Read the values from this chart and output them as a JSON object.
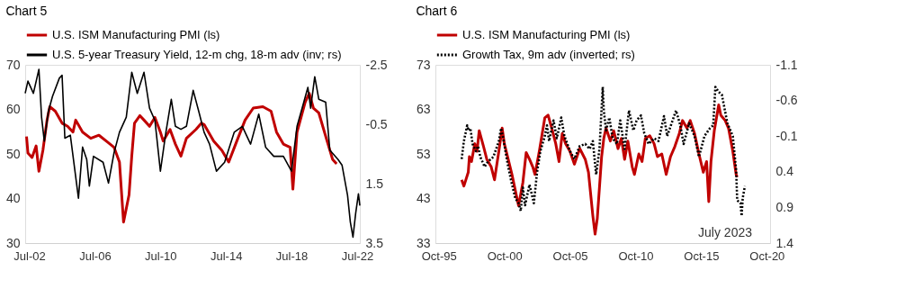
{
  "chart_data": [
    {
      "type": "line",
      "title": "Chart 5",
      "legend": "top",
      "grid": false,
      "marker": "none",
      "xlim": [
        "2002-04",
        "2022-09"
      ],
      "xticks": [
        {
          "value": "2002-07",
          "label": "Jul-02"
        },
        {
          "value": "2006-07",
          "label": "Jul-06"
        },
        {
          "value": "2010-07",
          "label": "Jul-10"
        },
        {
          "value": "2014-07",
          "label": "Jul-14"
        },
        {
          "value": "2018-07",
          "label": "Jul-18"
        },
        {
          "value": "2022-07",
          "label": "Jul-22"
        }
      ],
      "ylim": [
        30,
        70
      ],
      "yticks": [
        30,
        40,
        50,
        60,
        70
      ],
      "y2lim": [
        3.5,
        -2.5
      ],
      "y2ticks": [
        -2.5,
        -0.5,
        1.5,
        3.5
      ],
      "series": [
        {
          "name": "U.S. ISM Manufacturing PMI (ls)",
          "color": "#c00000",
          "axis": "y",
          "line_style": "solid",
          "x": [
            "2002-05",
            "2002-06",
            "2002-09",
            "2002-12",
            "2003-02",
            "2003-05",
            "2003-08",
            "2003-10",
            "2004-02",
            "2004-07",
            "2004-11",
            "2005-03",
            "2005-05",
            "2005-10",
            "2006-04",
            "2006-10",
            "2007-05",
            "2007-09",
            "2008-01",
            "2008-04",
            "2008-08",
            "2008-10",
            "2008-12",
            "2009-04",
            "2009-07",
            "2009-11",
            "2010-03",
            "2010-07",
            "2010-09",
            "2011-02",
            "2011-06",
            "2011-10",
            "2012-02",
            "2012-09",
            "2013-01",
            "2013-03",
            "2013-10",
            "2014-04",
            "2014-09",
            "2015-03",
            "2015-09",
            "2016-03",
            "2016-10",
            "2017-04",
            "2017-08",
            "2018-01",
            "2018-06",
            "2018-08",
            "2018-11",
            "2019-05",
            "2019-08",
            "2019-11",
            "2020-03",
            "2020-09",
            "2021-01",
            "2021-04"
          ],
          "values": [
            53.9,
            50.2,
            49.2,
            51.8,
            46.1,
            50.8,
            57.6,
            60.6,
            59.6,
            56.9,
            56.2,
            54.9,
            57.6,
            54.9,
            53.5,
            54.2,
            52.5,
            51.5,
            48.2,
            34.7,
            40.8,
            49.5,
            56.9,
            58.6,
            57.6,
            56.2,
            58.2,
            54.9,
            52.9,
            55.5,
            52.2,
            49.5,
            53.5,
            55.5,
            56.9,
            56.6,
            52.9,
            50.8,
            48.2,
            52.9,
            57.6,
            60.3,
            60.6,
            59.6,
            54.9,
            52.2,
            51.5,
            42.1,
            54.9,
            61.6,
            63.6,
            60.3,
            59.2,
            52.9,
            48.8,
            47.8
          ]
        },
        {
          "name": "U.S. 5-year Treasury Yield, 12-m chg, 18-m adv (inv; rs)",
          "color": "#000000",
          "axis": "y2",
          "line_style": "solid",
          "x": [
            "2002-04",
            "2002-06",
            "2002-10",
            "2003-02",
            "2003-04",
            "2003-06",
            "2003-09",
            "2003-12",
            "2004-05",
            "2004-07",
            "2004-09",
            "2005-01",
            "2005-07",
            "2005-10",
            "2006-01",
            "2006-03",
            "2006-06",
            "2007-01",
            "2007-05",
            "2007-09",
            "2008-01",
            "2008-06",
            "2008-10",
            "2009-02",
            "2009-07",
            "2009-11",
            "2010-03",
            "2010-07",
            "2010-11",
            "2011-03",
            "2011-06",
            "2011-10",
            "2012-02",
            "2012-07",
            "2012-11",
            "2013-03",
            "2013-07",
            "2013-12",
            "2014-06",
            "2015-01",
            "2015-07",
            "2016-01",
            "2016-07",
            "2016-12",
            "2017-06",
            "2018-01",
            "2018-07",
            "2018-11",
            "2019-04",
            "2019-07",
            "2019-09",
            "2019-12",
            "2020-03",
            "2020-08",
            "2020-11",
            "2021-05",
            "2021-08",
            "2021-12",
            "2022-02",
            "2022-04",
            "2022-06",
            "2022-08",
            "2022-09"
          ],
          "values": [
            -1.54,
            -1.95,
            -1.54,
            -2.35,
            -0.74,
            0.07,
            -0.94,
            -1.44,
            -2.05,
            -2.15,
            -0.03,
            -0.13,
            1.99,
            0.27,
            0.68,
            1.58,
            0.58,
            0.78,
            1.48,
            0.47,
            -0.23,
            -0.74,
            -2.25,
            -1.54,
            -2.25,
            -1.04,
            -0.63,
            1.08,
            -0.23,
            -1.34,
            -0.43,
            -0.33,
            -0.43,
            -1.64,
            -0.94,
            -0.23,
            0.17,
            1.08,
            0.78,
            -0.23,
            -0.43,
            0.17,
            -0.84,
            0.27,
            0.58,
            0.58,
            1.08,
            -0.43,
            -1.24,
            -1.74,
            -1.04,
            -2.1,
            -1.34,
            -1.24,
            0.37,
            0.68,
            0.88,
            1.89,
            2.79,
            3.3,
            2.49,
            1.84,
            2.24
          ]
        }
      ]
    },
    {
      "type": "line",
      "title": "Chart 6",
      "legend": "top",
      "grid": false,
      "marker": "none",
      "xlim": [
        "1995-07",
        "2021-01"
      ],
      "xticks": [
        {
          "value": "1995-10",
          "label": "Oct-95"
        },
        {
          "value": "2000-10",
          "label": "Oct-00"
        },
        {
          "value": "2005-10",
          "label": "Oct-05"
        },
        {
          "value": "2010-10",
          "label": "Oct-10"
        },
        {
          "value": "2015-10",
          "label": "Oct-15"
        },
        {
          "value": "2020-10",
          "label": "Oct-20"
        }
      ],
      "ylim": [
        33,
        73
      ],
      "yticks": [
        33,
        43,
        53,
        63,
        73
      ],
      "y2lim": [
        1.4,
        -1.1
      ],
      "y2ticks": [
        -1.1,
        -0.6,
        -0.1,
        0.4,
        0.9,
        1.4
      ],
      "annotations": [
        "July 2023"
      ],
      "series": [
        {
          "name": "U.S. ISM Manufacturing PMI (ls)",
          "color": "#c00000",
          "axis": "y",
          "line_style": "solid",
          "x": [
            "1997-07",
            "1997-09",
            "1998-01",
            "1998-02",
            "1998-04",
            "1998-07",
            "1998-09",
            "1998-11",
            "1999-03",
            "1999-06",
            "1999-10",
            "2000-01",
            "2000-05",
            "2000-08",
            "2000-10",
            "2001-02",
            "2001-05",
            "2001-09",
            "2001-11",
            "2002-03",
            "2002-06",
            "2002-09",
            "2002-12",
            "2003-02",
            "2003-06",
            "2003-11",
            "2004-02",
            "2004-06",
            "2004-09",
            "2004-12",
            "2005-03",
            "2005-06",
            "2005-10",
            "2006-02",
            "2006-07",
            "2006-12",
            "2007-03",
            "2007-07",
            "2007-09",
            "2007-11",
            "2008-03",
            "2008-05",
            "2008-07",
            "2008-11",
            "2009-02",
            "2009-06",
            "2009-09",
            "2009-12",
            "2010-03",
            "2010-07",
            "2010-09",
            "2011-01",
            "2011-04",
            "2011-07",
            "2011-11",
            "2012-03",
            "2012-06",
            "2012-10",
            "2013-02",
            "2013-06",
            "2013-10",
            "2014-02",
            "2014-05",
            "2014-09",
            "2014-12",
            "2015-04",
            "2015-08",
            "2015-12",
            "2016-03",
            "2016-05",
            "2016-07",
            "2016-10",
            "2017-02",
            "2017-04",
            "2017-08",
            "2017-11",
            "2018-03",
            "2018-06",
            "2018-07"
          ],
          "values": [
            47.2,
            45.8,
            48.9,
            52.4,
            51.3,
            55.3,
            53.6,
            58.2,
            54.7,
            51.8,
            50.1,
            47.2,
            53.6,
            58.8,
            55.3,
            51.3,
            48.4,
            43.7,
            41.4,
            46.6,
            53.3,
            51.8,
            50.1,
            48.4,
            53.6,
            61.1,
            61.7,
            58.2,
            55.3,
            51.3,
            57.6,
            55.3,
            53.6,
            50.7,
            54.2,
            51.8,
            48.9,
            39.1,
            35.0,
            38.5,
            52.4,
            56.5,
            58.8,
            55.9,
            58.2,
            54.2,
            56.5,
            51.8,
            55.9,
            50.1,
            48.4,
            53.0,
            51.3,
            56.5,
            57.1,
            55.3,
            52.4,
            53.0,
            48.4,
            52.4,
            54.7,
            57.6,
            60.5,
            58.8,
            60.5,
            57.6,
            53.0,
            48.9,
            51.3,
            42.3,
            51.3,
            58.2,
            64.0,
            61.7,
            60.5,
            58.8,
            53.6,
            48.4,
            47.8
          ]
        },
        {
          "name": "Growth Tax, 9m adv (inverted; rs)",
          "color": "#000000",
          "axis": "y2",
          "line_style": "dotted",
          "x": [
            "1997-07",
            "1997-09",
            "1997-12",
            "1998-01",
            "1998-03",
            "1998-05",
            "1998-08",
            "1998-10",
            "1998-12",
            "1999-04",
            "1999-07",
            "1999-12",
            "2000-05",
            "2000-07",
            "2000-09",
            "2001-01",
            "2001-04",
            "2001-08",
            "2001-11",
            "2002-01",
            "2002-03",
            "2002-05",
            "2002-09",
            "2003-01",
            "2003-04",
            "2003-07",
            "2003-11",
            "2004-01",
            "2004-03",
            "2004-07",
            "2004-10",
            "2005-02",
            "2005-05",
            "2005-10",
            "2006-02",
            "2006-07",
            "2006-12",
            "2007-04",
            "2007-07",
            "2007-10",
            "2008-01",
            "2008-04",
            "2008-05",
            "2008-07",
            "2008-10",
            "2009-01",
            "2009-05",
            "2009-08",
            "2009-12",
            "2010-04",
            "2010-08",
            "2010-11",
            "2011-03",
            "2011-06",
            "2011-10",
            "2012-03",
            "2012-07",
            "2012-12",
            "2013-03",
            "2013-07",
            "2013-11",
            "2014-03",
            "2014-06",
            "2014-11",
            "2015-04",
            "2015-08",
            "2016-01",
            "2016-06",
            "2016-09",
            "2016-11",
            "2017-02",
            "2017-05",
            "2017-10",
            "2018-03",
            "2018-06",
            "2018-07",
            "2018-10",
            "2018-11",
            "2018-12",
            "2019-02"
          ],
          "values": [
            0.22,
            -0.03,
            -0.25,
            -0.18,
            -0.21,
            0.01,
            0.11,
            0.04,
            0.19,
            0.33,
            0.26,
            0.19,
            -0.03,
            -0.21,
            -0.07,
            0.29,
            0.51,
            0.77,
            0.84,
            0.95,
            0.62,
            0.87,
            0.58,
            0.84,
            0.4,
            0.11,
            -0.1,
            -0.25,
            -0.03,
            -0.32,
            -0.07,
            -0.36,
            -0.1,
            0.11,
            0.22,
            0.04,
            0.01,
            0.08,
            -0.03,
            0.44,
            0.08,
            -0.79,
            -0.46,
            -0.18,
            -0.36,
            -0.07,
            0.01,
            -0.32,
            0.08,
            -0.46,
            -0.18,
            -0.32,
            -0.39,
            -0.14,
            0.01,
            -0.07,
            -0.03,
            -0.38,
            -0.1,
            -0.28,
            -0.46,
            -0.25,
            0.01,
            -0.28,
            -0.1,
            0.19,
            -0.1,
            -0.21,
            -0.25,
            -0.79,
            -0.72,
            -0.68,
            -0.28,
            -0.1,
            0.37,
            0.8,
            0.84,
            1.02,
            0.77,
            0.6
          ]
        }
      ]
    }
  ]
}
